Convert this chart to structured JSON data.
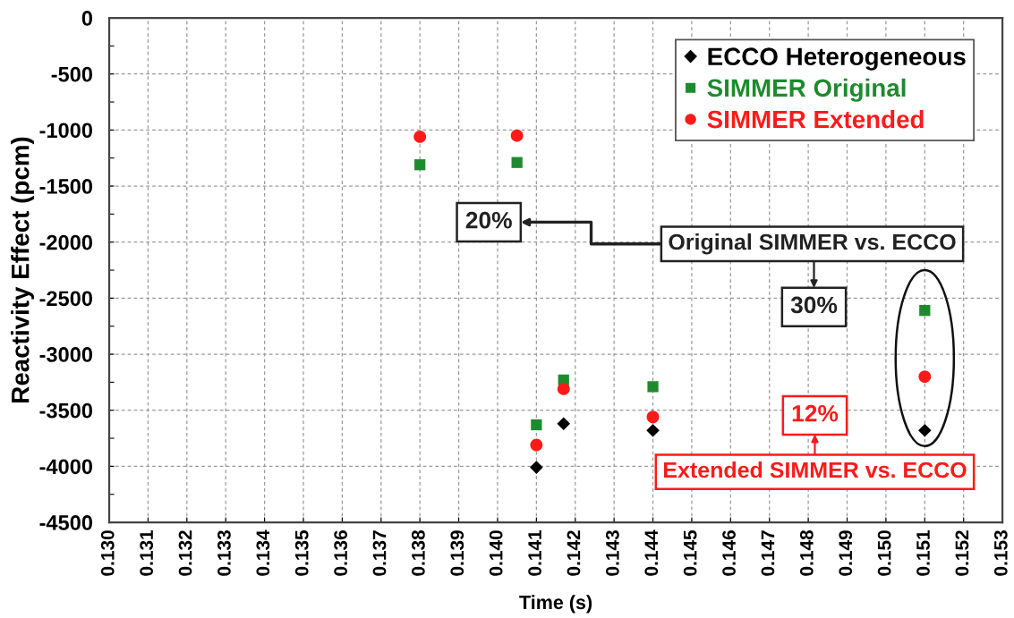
{
  "chart_data": {
    "type": "scatter",
    "xlabel": "Time (s)",
    "ylabel": "Reactivity Effect (pcm)",
    "x": [
      0.138,
      0.1405,
      0.141,
      0.1417,
      0.144,
      0.151
    ],
    "series": [
      {
        "name": "ECCO Heterogeneous",
        "color": "#000000",
        "marker": "diamond",
        "values": [
          null,
          null,
          -4010,
          -3620,
          -3680,
          -3680
        ]
      },
      {
        "name": "SIMMER Original",
        "color": "#1e8a2e",
        "marker": "square",
        "values": [
          -1310,
          -1290,
          -3630,
          -3230,
          -3290,
          -2610
        ]
      },
      {
        "name": "SIMMER Extended",
        "color": "#ff1a1a",
        "marker": "circle",
        "values": [
          -1060,
          -1050,
          -3810,
          -3310,
          -3560,
          -3200
        ]
      }
    ],
    "xlim": [
      0.13,
      0.153
    ],
    "xticks": [
      {
        "value": 0.13,
        "label": "0.130"
      },
      0.131,
      0.132,
      0.133,
      0.134,
      0.135,
      0.136,
      0.137,
      0.138,
      0.139,
      {
        "value": 0.14,
        "label": "0.140"
      },
      0.141,
      0.142,
      0.143,
      0.144,
      0.145,
      0.146,
      0.147,
      0.148,
      0.149,
      {
        "value": 0.15,
        "label": "0.150"
      },
      0.151,
      0.152,
      0.153
    ],
    "ylim": [
      -4500,
      0
    ],
    "yticks": [
      0,
      {
        "value": -250,
        "label": null
      },
      -500,
      {
        "value": -750,
        "label": null
      },
      -1000,
      {
        "value": -1250,
        "label": null
      },
      -1500,
      {
        "value": -1750,
        "label": null
      },
      -2000,
      {
        "value": -2250,
        "label": null
      },
      -2500,
      {
        "value": -2750,
        "label": null
      },
      -3000,
      {
        "value": -3250,
        "label": null
      },
      -3500,
      {
        "value": -3750,
        "label": null
      },
      -4000,
      {
        "value": -4250,
        "label": null
      },
      -4500
    ],
    "annotations": [
      "20%",
      "Original SIMMER vs. ECCO",
      "30%",
      "12%",
      "Extended SIMMER vs. ECCO"
    ],
    "grid": true,
    "legend": "top right"
  }
}
